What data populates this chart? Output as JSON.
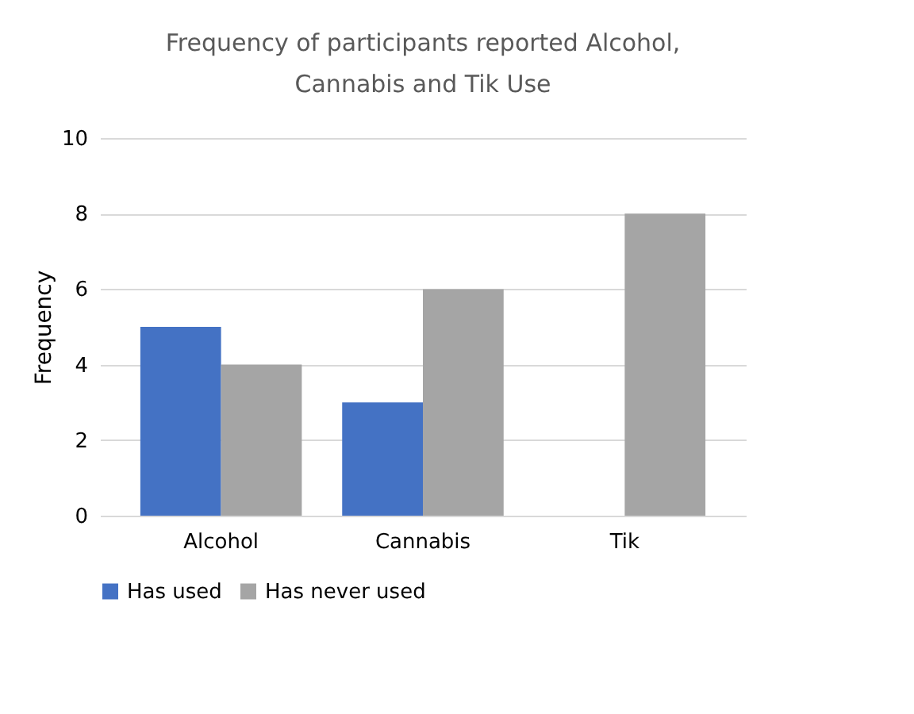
{
  "chart_data": {
    "type": "bar",
    "title": "Frequency of participants reported Alcohol, Cannabis and Tik Use",
    "categories": [
      "Alcohol",
      "Cannabis",
      "Tik"
    ],
    "series": [
      {
        "name": "Has used",
        "color": "#4472c4",
        "values": [
          5,
          3,
          0
        ]
      },
      {
        "name": "Has never used",
        "color": "#a5a5a5",
        "values": [
          4,
          6,
          8
        ]
      }
    ],
    "ylabel": "Frequency",
    "ylim": [
      0,
      10
    ],
    "yticks": [
      0,
      2,
      4,
      6,
      8,
      10
    ],
    "grid": "y",
    "legend": "bottom"
  }
}
